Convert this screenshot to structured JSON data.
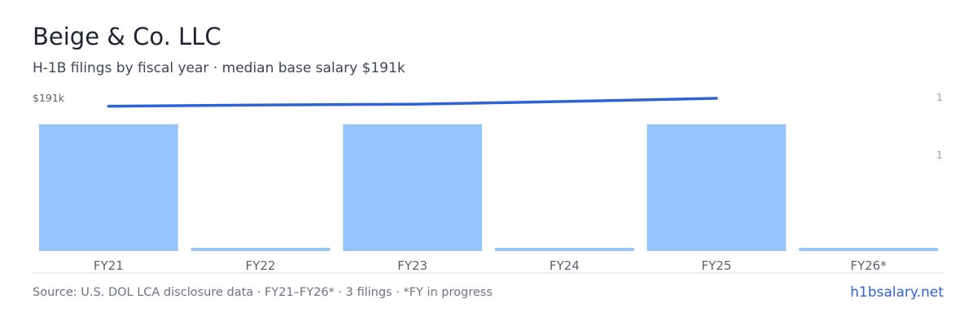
{
  "header": {
    "title": "Beige & Co. LLC",
    "subtitle": "H-1B filings by fiscal year · median base salary $191k"
  },
  "footer": {
    "source": "Source: U.S. DOL LCA disclosure data · FY21–FY26* · 3 filings · *FY in progress",
    "brand": "h1bsalary.net"
  },
  "colors": {
    "bar": "#93c5fb",
    "line": "#2f62d4",
    "axis": "#d9dce1",
    "tick_text": "#5b6270",
    "right_tick_text": "#9aa0aa"
  },
  "chart_data": {
    "type": "bar",
    "categories": [
      "FY21",
      "FY22",
      "FY23",
      "FY24",
      "FY25",
      "FY26*"
    ],
    "series": [
      {
        "type": "bar",
        "values": [
          1,
          0,
          1,
          0,
          1,
          0
        ]
      },
      {
        "type": "line",
        "values": [
          189,
          189.3,
          189.5,
          190.2,
          191,
          null
        ]
      }
    ],
    "left_axis_label": "$191k",
    "right_axis_ticks": [
      "1",
      "1"
    ]
  }
}
